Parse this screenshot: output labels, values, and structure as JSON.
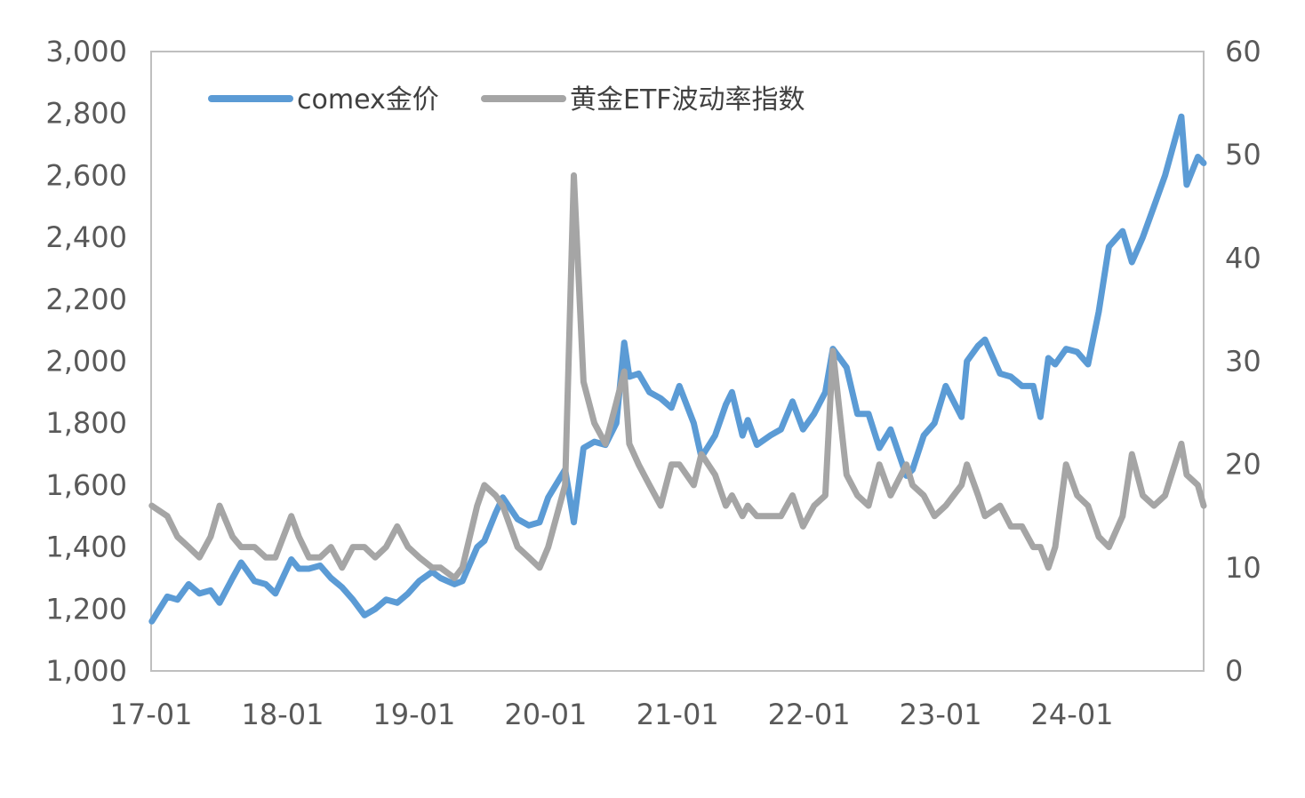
{
  "chart_data": {
    "type": "line",
    "title": "",
    "xlabel": "",
    "ylabel": "",
    "x_tick_labels": [
      "17-01",
      "18-01",
      "19-01",
      "20-01",
      "21-01",
      "22-01",
      "23-01",
      "24-01"
    ],
    "y_left": {
      "lim": [
        1000,
        3000
      ],
      "ticks": [
        1000,
        1200,
        1400,
        1600,
        1800,
        2000,
        2200,
        2400,
        2600,
        2800,
        3000
      ],
      "tick_labels": [
        "1,000",
        "1,200",
        "1,400",
        "1,600",
        "1,800",
        "2,000",
        "2,200",
        "2,400",
        "2,600",
        "2,800",
        "3,000"
      ]
    },
    "y_right": {
      "lim": [
        0,
        60
      ],
      "ticks": [
        0,
        10,
        20,
        30,
        40,
        50,
        60
      ],
      "tick_labels": [
        "0",
        "10",
        "20",
        "30",
        "40",
        "50",
        "60"
      ]
    },
    "grid": false,
    "legend_position": "top-left",
    "series": [
      {
        "name": "comex金价",
        "axis": "left",
        "color": "#5b9bd5",
        "x": [
          "2017-01-03",
          "2017-02-15",
          "2017-03-15",
          "2017-04-15",
          "2017-05-15",
          "2017-06-15",
          "2017-07-10",
          "2017-08-15",
          "2017-09-08",
          "2017-10-15",
          "2017-11-15",
          "2017-12-12",
          "2018-01-25",
          "2018-02-15",
          "2018-03-15",
          "2018-04-15",
          "2018-05-15",
          "2018-06-15",
          "2018-07-15",
          "2018-08-16",
          "2018-09-15",
          "2018-10-15",
          "2018-11-15",
          "2018-12-15",
          "2019-01-15",
          "2019-02-20",
          "2019-03-15",
          "2019-04-23",
          "2019-05-15",
          "2019-06-25",
          "2019-07-15",
          "2019-08-15",
          "2019-09-04",
          "2019-10-15",
          "2019-11-15",
          "2019-12-15",
          "2020-01-08",
          "2020-02-24",
          "2020-03-19",
          "2020-04-15",
          "2020-05-15",
          "2020-06-15",
          "2020-07-15",
          "2020-08-06",
          "2020-08-20",
          "2020-09-15",
          "2020-10-15",
          "2020-11-15",
          "2020-12-15",
          "2021-01-06",
          "2021-02-15",
          "2021-03-08",
          "2021-04-15",
          "2021-05-15",
          "2021-06-01",
          "2021-06-30",
          "2021-07-15",
          "2021-08-09",
          "2021-09-15",
          "2021-10-15",
          "2021-11-16",
          "2021-12-15",
          "2022-01-15",
          "2022-02-15",
          "2022-03-08",
          "2022-04-15",
          "2022-05-15",
          "2022-06-15",
          "2022-07-15",
          "2022-08-15",
          "2022-09-28",
          "2022-10-15",
          "2022-11-15",
          "2022-12-15",
          "2023-01-15",
          "2023-02-28",
          "2023-03-15",
          "2023-04-15",
          "2023-05-04",
          "2023-06-15",
          "2023-07-15",
          "2023-08-15",
          "2023-09-15",
          "2023-10-05",
          "2023-10-27",
          "2023-11-15",
          "2023-12-15",
          "2024-01-15",
          "2024-02-14",
          "2024-03-15",
          "2024-04-12",
          "2024-05-20",
          "2024-06-15",
          "2024-07-15",
          "2024-08-15",
          "2024-09-15",
          "2024-10-30",
          "2024-11-14",
          "2024-12-15",
          "2024-12-31"
        ],
        "values": [
          1160,
          1240,
          1230,
          1280,
          1250,
          1260,
          1220,
          1300,
          1350,
          1290,
          1280,
          1250,
          1360,
          1330,
          1330,
          1340,
          1300,
          1270,
          1230,
          1180,
          1200,
          1230,
          1220,
          1250,
          1290,
          1320,
          1300,
          1280,
          1290,
          1400,
          1420,
          1510,
          1560,
          1490,
          1470,
          1480,
          1560,
          1650,
          1480,
          1720,
          1740,
          1730,
          1800,
          2060,
          1950,
          1960,
          1900,
          1880,
          1850,
          1920,
          1800,
          1690,
          1760,
          1860,
          1900,
          1760,
          1810,
          1730,
          1760,
          1780,
          1870,
          1780,
          1830,
          1900,
          2040,
          1980,
          1830,
          1830,
          1720,
          1780,
          1630,
          1650,
          1760,
          1800,
          1920,
          1820,
          2000,
          2050,
          2070,
          1960,
          1950,
          1920,
          1920,
          1820,
          2010,
          1990,
          2040,
          2030,
          1990,
          2160,
          2370,
          2420,
          2320,
          2400,
          2500,
          2600,
          2790,
          2570,
          2660,
          2640
        ]
      },
      {
        "name": "黄金ETF波动率指数",
        "axis": "right",
        "color": "#a5a5a5",
        "x": [
          "2017-01-03",
          "2017-02-15",
          "2017-03-15",
          "2017-04-15",
          "2017-05-15",
          "2017-06-15",
          "2017-07-10",
          "2017-08-15",
          "2017-09-08",
          "2017-10-15",
          "2017-11-15",
          "2017-12-12",
          "2018-01-25",
          "2018-02-15",
          "2018-03-15",
          "2018-04-15",
          "2018-05-15",
          "2018-06-15",
          "2018-07-15",
          "2018-08-16",
          "2018-09-15",
          "2018-10-15",
          "2018-11-15",
          "2018-12-15",
          "2019-01-15",
          "2019-02-20",
          "2019-03-15",
          "2019-04-23",
          "2019-05-15",
          "2019-06-25",
          "2019-07-15",
          "2019-08-15",
          "2019-09-04",
          "2019-10-15",
          "2019-11-15",
          "2019-12-15",
          "2020-01-08",
          "2020-02-24",
          "2020-03-19",
          "2020-04-15",
          "2020-05-15",
          "2020-06-15",
          "2020-07-15",
          "2020-08-06",
          "2020-08-20",
          "2020-09-15",
          "2020-10-15",
          "2020-11-15",
          "2020-12-15",
          "2021-01-06",
          "2021-02-15",
          "2021-03-08",
          "2021-04-15",
          "2021-05-15",
          "2021-06-01",
          "2021-06-30",
          "2021-07-15",
          "2021-08-09",
          "2021-09-15",
          "2021-10-15",
          "2021-11-16",
          "2021-12-15",
          "2022-01-15",
          "2022-02-15",
          "2022-03-08",
          "2022-04-15",
          "2022-05-15",
          "2022-06-15",
          "2022-07-15",
          "2022-08-15",
          "2022-09-28",
          "2022-10-15",
          "2022-11-15",
          "2022-12-15",
          "2023-01-15",
          "2023-02-28",
          "2023-03-15",
          "2023-04-15",
          "2023-05-04",
          "2023-06-15",
          "2023-07-15",
          "2023-08-15",
          "2023-09-15",
          "2023-10-05",
          "2023-10-27",
          "2023-11-15",
          "2023-12-15",
          "2024-01-15",
          "2024-02-14",
          "2024-03-15",
          "2024-04-12",
          "2024-05-20",
          "2024-06-15",
          "2024-07-15",
          "2024-08-15",
          "2024-09-15",
          "2024-10-30",
          "2024-11-14",
          "2024-12-15",
          "2024-12-31"
        ],
        "values": [
          16,
          15,
          13,
          12,
          11,
          13,
          16,
          13,
          12,
          12,
          11,
          11,
          15,
          13,
          11,
          11,
          12,
          10,
          12,
          12,
          11,
          12,
          14,
          12,
          11,
          10,
          10,
          9,
          10,
          16,
          18,
          17,
          16,
          12,
          11,
          10,
          12,
          18,
          48,
          28,
          24,
          22,
          26,
          29,
          22,
          20,
          18,
          16,
          20,
          20,
          18,
          21,
          19,
          16,
          17,
          15,
          16,
          15,
          15,
          15,
          17,
          14,
          16,
          17,
          31,
          19,
          17,
          16,
          20,
          17,
          20,
          18,
          17,
          15,
          16,
          18,
          20,
          17,
          15,
          16,
          14,
          14,
          12,
          12,
          10,
          12,
          20,
          17,
          16,
          13,
          12,
          15,
          21,
          17,
          16,
          17,
          22,
          19,
          18,
          16
        ]
      }
    ]
  }
}
